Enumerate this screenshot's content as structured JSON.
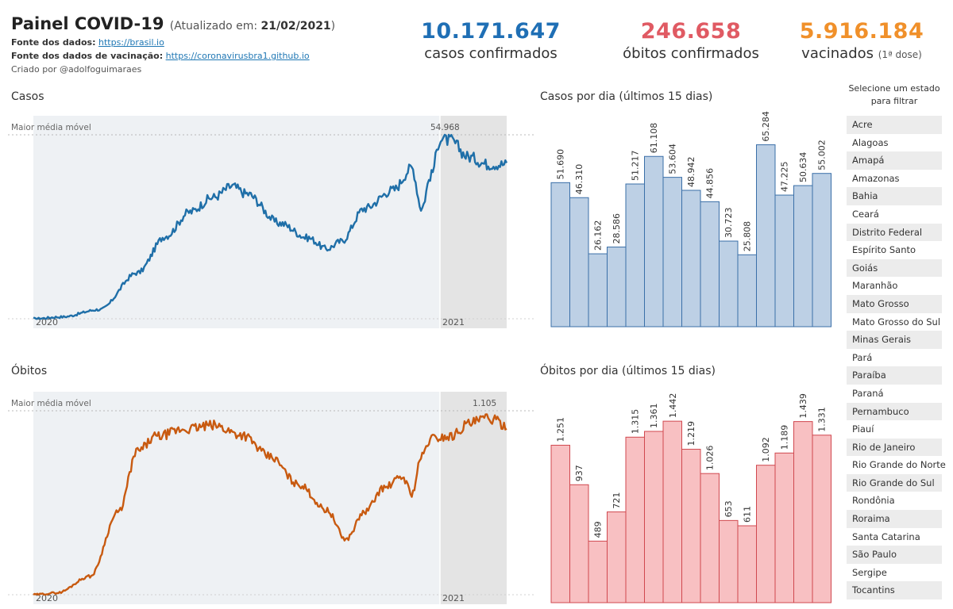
{
  "header": {
    "title": "Painel COVID-19",
    "updated_label": "(Atualizado em:",
    "updated_date": "21/02/2021",
    "updated_close": ")",
    "source_label": "Fonte dos dados:",
    "source_link": "https://brasil.io",
    "vac_source_label": "Fonte dos dados de vacinação:",
    "vac_source_link": "https://coronavirusbra1.github.io",
    "created_by": "Criado por @adolfoguimaraes"
  },
  "kpis": {
    "cases": {
      "value": "10.171.647",
      "label": "casos confirmados",
      "color": "#1f6fb5"
    },
    "deaths": {
      "value": "246.658",
      "label": "óbitos confirmados",
      "color": "#e05a63"
    },
    "vaccinated": {
      "value": "5.916.184",
      "label": "vacinados",
      "sub": "(1ª dose)",
      "color": "#f0902a"
    }
  },
  "sections": {
    "cases": "Casos",
    "deaths": "Óbitos",
    "cases_daily": "Casos por dia (últimos 15 dias)",
    "deaths_daily": "Óbitos por dia (últimos 15 dias)"
  },
  "filter": {
    "title": "Selecione um estado para filtrar",
    "states": [
      "Acre",
      "Alagoas",
      "Amapá",
      "Amazonas",
      "Bahia",
      "Ceará",
      "Distrito Federal",
      "Espírito Santo",
      "Goiás",
      "Maranhão",
      "Mato Grosso",
      "Mato Grosso do Sul",
      "Minas Gerais",
      "Pará",
      "Paraíba",
      "Paraná",
      "Pernambuco",
      "Piauí",
      "Rio de Janeiro",
      "Rio Grande do Norte",
      "Rio Grande do Sul",
      "Rondônia",
      "Roraima",
      "Santa Catarina",
      "São Paulo",
      "Sergipe",
      "Tocantins"
    ]
  },
  "chart_data": [
    {
      "id": "cases_line",
      "type": "line",
      "ref_label": "Maior média móvel",
      "max_label": "54.968",
      "max_value": 54968,
      "x_labels": [
        "2020",
        "2021"
      ],
      "color": "#1f6fa8",
      "x_months": [
        0,
        0.5,
        1,
        1.5,
        2,
        2.5,
        3,
        3.5,
        4,
        4.5,
        5,
        5.5,
        6,
        6.5,
        7,
        7.5,
        8,
        8.5,
        9,
        9.5,
        10,
        10.5,
        11,
        11.5,
        12,
        12.5,
        13,
        13.5,
        14,
        14.5,
        15,
        15.5,
        16,
        16.5,
        17,
        17.5,
        18,
        18.5,
        19,
        19.5,
        20,
        20.5,
        21,
        21.5,
        22,
        22.5,
        23,
        23.5,
        24,
        24.5,
        25,
        25.5,
        26,
        26.5,
        27,
        27.5,
        28,
        28.5,
        29,
        29.5,
        30,
        30.5,
        31,
        31.5,
        32,
        32.5,
        33,
        33.5,
        34,
        34.5,
        35,
        35.5,
        36,
        36.5,
        37,
        37.5,
        38,
        38.5,
        39,
        39.5,
        40,
        40.5,
        41,
        41.5,
        42,
        42.5,
        43,
        43.5,
        44,
        44.5,
        45,
        45.5,
        46,
        46.5,
        47,
        47.5,
        48,
        48.5,
        49,
        49.5,
        50,
        50.5,
        51,
        51.5,
        52,
        52.5,
        53,
        53.5,
        54,
        54.5,
        55,
        55.5,
        56,
        56.5,
        57,
        57.5,
        58,
        58.5,
        59,
        59.5,
        60,
        60.5,
        61,
        61.5,
        62,
        62.5,
        63,
        63.5,
        64,
        64.5,
        65,
        65.5,
        66,
        66.5,
        67,
        67.5,
        68,
        68.5,
        69,
        69.5,
        70,
        70.5,
        71,
        71.5,
        72,
        72.5,
        73,
        73.5,
        74,
        74.5,
        75,
        75.5,
        76,
        76.5,
        77,
        77.5,
        78,
        78.5,
        79,
        79.5,
        80,
        80.5,
        81,
        81.5,
        82,
        82.5,
        83,
        83.5,
        84,
        84.5,
        85,
        85.5,
        86,
        86.5,
        87,
        87.5,
        88,
        88.5,
        89,
        89.5,
        90,
        90.5,
        91,
        91.5,
        92,
        92.5,
        93,
        93.5,
        94,
        94.5,
        95,
        95.5,
        96,
        96.5,
        97,
        97.5,
        98,
        98.5,
        99,
        99.5,
        100,
        100.5,
        101,
        101.5,
        102,
        102.5,
        103,
        103.5,
        104,
        104.5,
        105,
        105.5,
        106,
        106.5,
        107,
        107.5,
        108,
        108.5,
        109,
        109.5,
        110,
        110.5,
        111,
        111.5,
        112,
        112.5,
        113,
        113.5,
        114,
        114.5,
        115,
        115.5,
        116,
        116.5,
        117,
        117.5,
        118,
        118.5,
        119,
        119.5,
        120,
        120.5,
        121,
        121.5,
        122,
        122.5,
        123,
        123.5,
        124,
        124.5,
        125,
        125.5,
        126,
        126.5,
        127,
        127.5,
        128,
        128.5,
        129,
        129.5,
        130,
        130.5,
        131,
        131.5,
        132,
        132.5,
        133,
        133.5,
        134,
        134.5,
        135,
        135.5,
        136,
        136.5,
        137,
        137.5,
        138,
        138.5,
        139,
        139.5,
        140,
        140.5,
        141,
        141.5,
        142,
        142.5,
        143,
        143.5,
        144,
        144.5,
        145,
        145.5,
        146,
        146.5,
        147,
        147.5,
        148,
        148.5,
        149,
        149.5,
        150,
        150.5,
        151,
        151.5,
        152,
        152.5,
        153,
        153.5,
        154,
        154.5,
        155,
        155.5,
        156,
        156.5,
        157,
        157.5,
        158,
        158.5,
        159,
        159.5,
        160,
        160.5,
        161,
        161.5,
        162,
        162.5,
        163,
        163.5,
        164,
        164.5,
        165,
        165.5,
        166,
        166.5,
        167,
        167.5,
        168,
        168.5,
        169,
        169.5,
        170,
        170.5,
        171,
        171.5,
        172,
        172.5,
        173,
        173.5,
        174,
        174.5,
        175,
        175.5,
        176,
        176.5,
        177,
        177.5,
        178,
        178.5,
        179,
        179.5,
        180,
        180.5,
        181,
        181.5,
        182,
        182.5,
        183,
        183.5,
        184,
        184.5,
        185,
        185.5,
        186,
        186.5,
        187,
        187.5,
        188,
        188.5,
        189,
        189.5,
        190,
        190.5,
        191,
        191.5,
        192,
        192.5,
        193,
        193.5,
        194,
        194.5,
        195,
        195.5,
        196,
        196.5,
        197,
        197.5,
        198,
        198.5,
        199,
        199.5,
        200,
        200.5,
        201,
        201.5,
        202,
        202.5,
        203,
        203.5,
        204,
        204.5,
        205,
        205.5,
        206,
        206.5,
        207,
        207.5,
        208,
        208.5,
        209,
        209.5,
        210,
        210.5,
        211,
        211.5,
        212,
        212.5,
        213,
        213.5,
        214,
        214.5,
        215,
        215.5,
        216,
        216.5,
        217,
        217.5,
        218,
        218.5,
        219,
        219.5,
        220,
        220.5,
        221,
        221.5,
        222,
        222.5,
        223,
        223.5,
        224,
        224.5,
        225,
        225.5,
        226,
        226.5,
        227,
        227.5,
        228,
        228.5,
        229,
        229.5,
        230,
        230.5,
        231,
        231.5,
        232,
        232.5,
        233,
        233.5,
        234,
        234.5,
        235,
        235.5,
        236,
        236.5,
        237,
        237.5,
        238,
        238.5,
        239,
        239.5,
        240,
        240.5,
        241,
        241.5,
        242,
        242.5,
        243,
        243.5,
        244,
        244.5,
        245,
        245.5,
        246,
        246.5,
        247,
        247.5,
        248,
        248.5,
        249,
        249.5,
        250,
        250.5,
        251,
        251.5,
        252,
        252.5,
        253,
        253.5,
        254,
        254.5,
        255,
        255.5,
        256,
        256.5,
        257,
        257.5,
        258,
        258.5,
        259,
        259.5,
        260,
        260.5,
        261,
        261.5,
        262,
        262.5,
        263,
        263.5,
        264,
        264.5,
        265,
        265.5,
        266,
        266.5,
        267,
        267.5,
        268,
        268.5,
        269,
        269.5,
        270,
        270.5,
        271,
        271.5,
        272,
        272.5,
        273,
        273.5,
        274,
        274.5,
        275,
        275.5,
        276,
        276.5,
        277,
        277.5,
        278,
        278.5,
        279,
        279.5,
        280,
        280.5,
        281,
        281.5,
        282,
        282.5,
        283,
        283.5,
        284,
        284.5,
        285,
        285.5,
        286,
        286.5,
        287,
        287.5,
        288,
        288.5,
        289,
        289.5,
        290,
        290.5,
        291,
        291.5,
        292,
        292.5,
        293,
        293.5,
        294,
        294.5,
        295,
        295.5,
        296,
        296.5,
        297,
        297.5,
        298,
        298.5,
        299,
        299.5,
        300,
        300.5,
        301,
        301.5,
        302,
        302.5,
        303,
        303.5,
        304,
        304.5,
        305,
        305.5,
        306,
        306.5,
        307,
        307.5,
        308,
        308.5,
        309,
        309.5,
        310,
        310.5,
        311,
        311.5,
        312,
        312.5,
        313,
        313.5,
        314,
        314.5,
        315,
        315.5,
        316,
        316.5,
        317,
        317.5,
        318,
        318.5,
        319,
        319.5,
        320,
        320.5,
        321,
        321.5,
        322,
        322.5,
        323,
        323.5,
        324,
        324.5,
        325,
        325.5,
        326,
        326.5,
        327,
        327.5,
        328,
        328.5,
        329,
        329.5,
        330,
        330.5,
        331,
        331.5,
        332,
        332.5,
        333,
        333.5,
        334,
        334.5,
        335,
        335.5,
        336,
        336.5,
        337,
        337.5,
        338,
        338.5,
        339,
        339.5,
        340,
        340.5,
        341,
        341.5,
        342,
        342.5,
        343,
        343.5,
        344,
        344.5,
        345,
        345.5,
        346,
        346.5,
        347,
        347.5,
        348,
        348.5,
        349,
        349.5,
        350,
        350.5,
        351,
        351.5,
        352,
        352.5,
        353,
        353.5,
        354,
        354.5,
        355,
        355.5,
        356,
        356.5,
        357,
        357.5,
        358,
        358.5,
        359,
        359.5,
        360
      ]
    },
    {
      "id": "deaths_line",
      "type": "line",
      "ref_label": "Maior média móvel",
      "max_label": "1.105",
      "max_value": 1105,
      "x_labels": [
        "2020",
        "2021"
      ],
      "color": "#c85a10"
    },
    {
      "id": "cases_bars",
      "type": "bar",
      "values": [
        51690,
        46310,
        26162,
        28586,
        51217,
        61108,
        53604,
        48942,
        44856,
        30723,
        25808,
        65284,
        47225,
        50634,
        55002
      ],
      "labels": [
        "51.690",
        "46.310",
        "26.162",
        "28.586",
        "51.217",
        "61.108",
        "53.604",
        "48.942",
        "44.856",
        "30.723",
        "25.808",
        "65.284",
        "47.225",
        "50.634",
        "55.002"
      ],
      "ylim": [
        0,
        70000
      ],
      "fill": "#bdd0e5",
      "stroke": "#3a6fa8"
    },
    {
      "id": "deaths_bars",
      "type": "bar",
      "values": [
        1251,
        937,
        489,
        721,
        1315,
        1361,
        1442,
        1219,
        1026,
        653,
        611,
        1092,
        1189,
        1439,
        1331
      ],
      "labels": [
        "1.251",
        "937",
        "489",
        "721",
        "1.315",
        "1.361",
        "1.442",
        "1.219",
        "1.026",
        "653",
        "611",
        "1.092",
        "1.189",
        "1.439",
        "1.331"
      ],
      "ylim": [
        0,
        1550
      ],
      "fill": "#f8c0c2",
      "stroke": "#d0484f"
    }
  ]
}
